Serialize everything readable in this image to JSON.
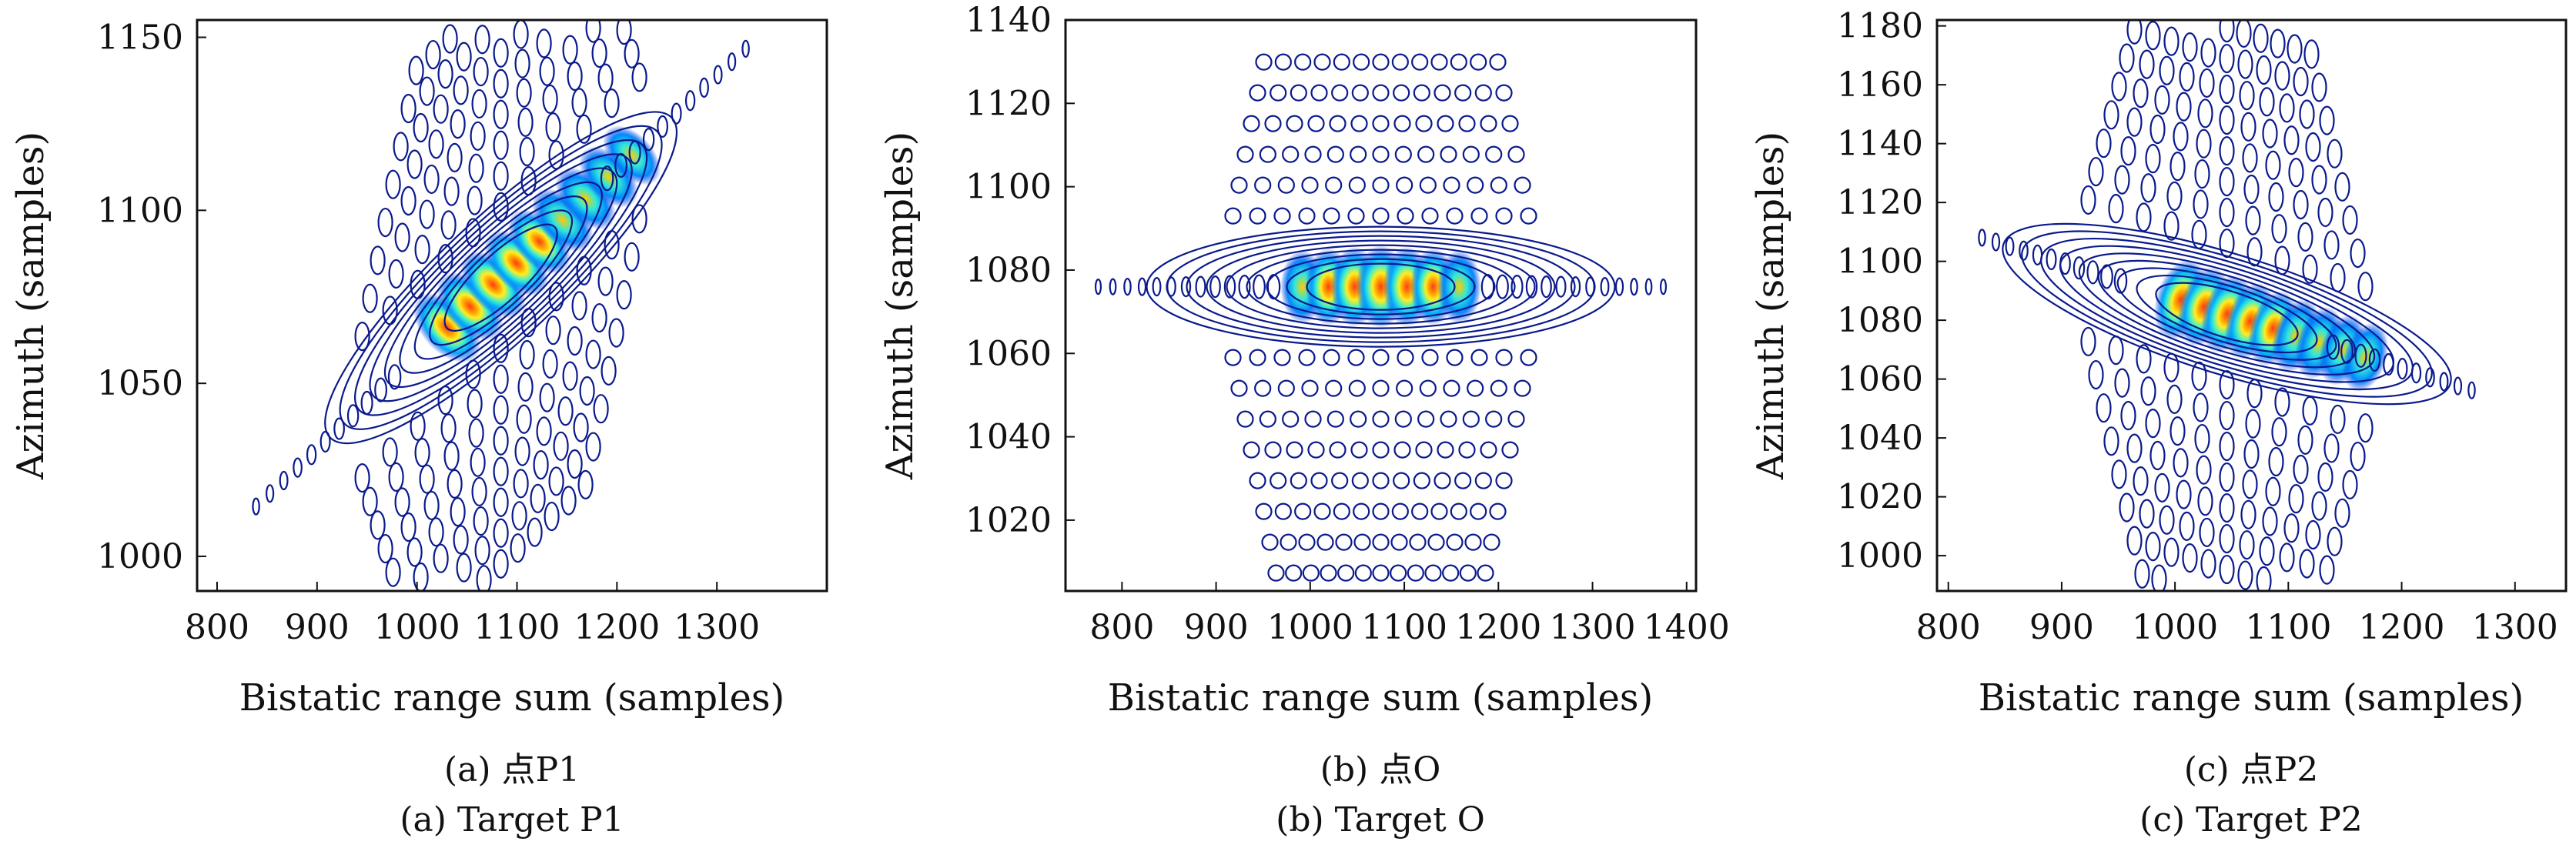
{
  "chart_data": [
    {
      "type": "heatmap",
      "subtype": "contour",
      "caption_cn": "(a) 点P1",
      "caption_en": "(a) Target P1",
      "xlabel": "Bistatic range sum (samples)",
      "ylabel": "Azimuth (samples)",
      "xlim": [
        780,
        1410
      ],
      "ylim": [
        990,
        1155
      ],
      "xticks": [
        800,
        900,
        1000,
        1100,
        1200,
        1300
      ],
      "yticks": [
        1000,
        1050,
        1100,
        1150
      ],
      "peak": {
        "x": 1030,
        "y": 1066
      },
      "main_axis_slope": 0.27,
      "cross_axis_slope": -3.0,
      "colormap": "jet",
      "contour_color": "#0a1a8c",
      "grid": false
    },
    {
      "type": "heatmap",
      "subtype": "contour",
      "caption_cn": "(b) 点O",
      "caption_en": "(b) Target O",
      "xlabel": "Bistatic range sum (samples)",
      "ylabel": "Azimuth (samples)",
      "xlim": [
        740,
        1410
      ],
      "ylim": [
        1003,
        1140
      ],
      "xticks": [
        800,
        900,
        1000,
        1100,
        1200,
        1300,
        1400
      ],
      "yticks": [
        1020,
        1040,
        1060,
        1080,
        1100,
        1120,
        1140
      ],
      "peak": {
        "x": 1075,
        "y": 1076
      },
      "main_axis_slope": 0,
      "cross_axis_slope": null,
      "colormap": "jet",
      "contour_color": "#0a1a8c",
      "grid": false
    },
    {
      "type": "heatmap",
      "subtype": "contour",
      "caption_cn": "(c) 点P2",
      "caption_en": "(c) Target P2",
      "xlabel": "Bistatic range sum (samples)",
      "ylabel": "Azimuth (samples)",
      "xlim": [
        790,
        1345
      ],
      "ylim": [
        988,
        1182
      ],
      "xticks": [
        800,
        900,
        1000,
        1100,
        1200,
        1300
      ],
      "yticks": [
        1000,
        1020,
        1040,
        1060,
        1080,
        1100,
        1120,
        1140,
        1160,
        1180
      ],
      "peak": {
        "x": 1005,
        "y": 1087
      },
      "main_axis_slope": -0.12,
      "cross_axis_slope": 1.8,
      "colormap": "jet",
      "contour_color": "#0a1a8c",
      "grid": false
    }
  ]
}
